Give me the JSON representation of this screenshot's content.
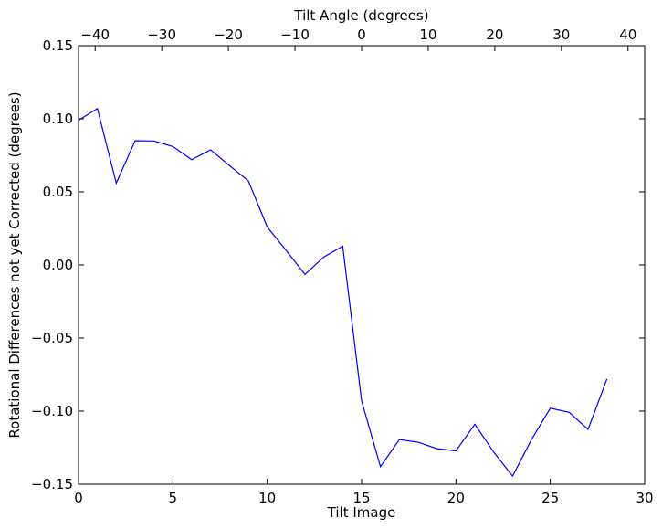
{
  "chart_data": {
    "type": "line",
    "xlabel": "Tilt Image",
    "ylabel": "Rotational Differences not yet Corrected (degrees)",
    "top_xlabel": "Tilt Angle (degrees)",
    "xlim": [
      0,
      30
    ],
    "ylim": [
      -0.15,
      0.15
    ],
    "top_xlim": [
      -42.5,
      42.5
    ],
    "xticks": [
      0,
      5,
      10,
      15,
      20,
      25,
      30
    ],
    "xtick_labels": [
      "0",
      "5",
      "10",
      "15",
      "20",
      "25",
      "30"
    ],
    "yticks": [
      -0.15,
      -0.1,
      -0.05,
      0.0,
      0.05,
      0.1,
      0.15
    ],
    "ytick_labels": [
      "−0.15",
      "−0.10",
      "−0.05",
      "0.00",
      "0.05",
      "0.10",
      "0.15"
    ],
    "top_xticks": [
      -40,
      -30,
      -20,
      -10,
      0,
      10,
      20,
      30,
      40
    ],
    "top_xtick_labels": [
      "−40",
      "−30",
      "−20",
      "−10",
      "0",
      "10",
      "20",
      "30",
      "40"
    ],
    "grid": false,
    "series": [
      {
        "color": "#0000ff",
        "x": [
          0,
          1,
          2,
          3,
          4,
          5,
          6,
          7,
          8,
          9,
          10,
          11,
          12,
          13,
          14,
          15,
          16,
          17,
          18,
          19,
          20,
          21,
          22,
          23,
          24,
          25,
          26,
          27,
          28
        ],
        "y": [
          0.099,
          0.107,
          0.056,
          0.085,
          0.0848,
          0.081,
          0.072,
          0.0788,
          0.068,
          0.0575,
          0.026,
          0.01,
          -0.0065,
          0.0055,
          0.0128,
          -0.093,
          -0.138,
          -0.1195,
          -0.1213,
          -0.1257,
          -0.1272,
          -0.109,
          -0.128,
          -0.1445,
          -0.1195,
          -0.098,
          -0.1008,
          -0.1125,
          -0.078
        ]
      }
    ]
  }
}
